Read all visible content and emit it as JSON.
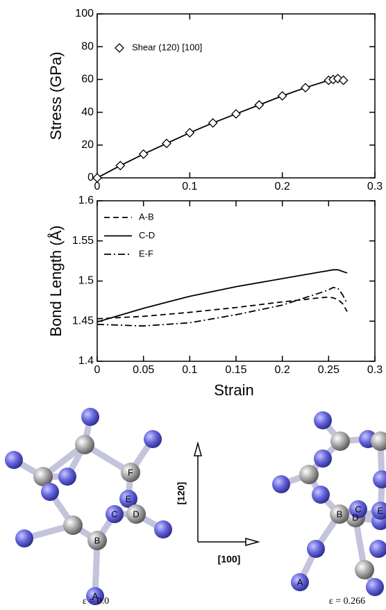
{
  "chart_data": [
    {
      "type": "line",
      "ylabel": "Stress (GPa)",
      "marker": "diamond",
      "x": [
        0,
        0.025,
        0.05,
        0.075,
        0.1,
        0.125,
        0.15,
        0.175,
        0.2,
        0.225,
        0.25,
        0.255,
        0.26,
        0.266
      ],
      "series": [
        {
          "name": "Shear (120) [100]",
          "color": "#000000",
          "style": "solid",
          "values": [
            0,
            7.5,
            14.5,
            21,
            27.5,
            33.5,
            39,
            44.5,
            50,
            55,
            59.5,
            60,
            60.5,
            59.5
          ]
        }
      ],
      "xlim": [
        0,
        0.3
      ],
      "ylim": [
        0,
        100
      ],
      "xticks": [
        0,
        0.1,
        0.2,
        0.3
      ],
      "yticks": [
        0,
        20,
        40,
        60,
        80,
        100
      ]
    },
    {
      "type": "line",
      "xlabel": "Strain",
      "ylabel": "Bond Length (Å)",
      "x": [
        0,
        0.05,
        0.1,
        0.15,
        0.2,
        0.24,
        0.25,
        0.255,
        0.26,
        0.265,
        0.27
      ],
      "series": [
        {
          "name": "A-B",
          "color": "#000000",
          "style": "dashed",
          "values": [
            1.453,
            1.456,
            1.461,
            1.467,
            1.474,
            1.479,
            1.48,
            1.479,
            1.477,
            1.472,
            1.462
          ]
        },
        {
          "name": "C-D",
          "color": "#000000",
          "style": "solid",
          "values": [
            1.449,
            1.466,
            1.481,
            1.493,
            1.503,
            1.511,
            1.513,
            1.514,
            1.514,
            1.512,
            1.51
          ]
        },
        {
          "name": "E-F",
          "color": "#000000",
          "style": "dashdot",
          "values": [
            1.446,
            1.444,
            1.448,
            1.458,
            1.47,
            1.485,
            1.489,
            1.492,
            1.491,
            1.483,
            1.472
          ]
        }
      ],
      "xlim": [
        0,
        0.3
      ],
      "ylim": [
        1.4,
        1.6
      ],
      "xticks": [
        0,
        0.05,
        0.1,
        0.15,
        0.2,
        0.25,
        0.3
      ],
      "yticks": [
        1.4,
        1.45,
        1.5,
        1.55,
        1.6
      ]
    }
  ],
  "figure": {
    "direction_vertical": "[120]",
    "direction_horizontal": "[100]",
    "left_caption": "ε = 0.0",
    "right_caption": "ε = 0.266",
    "left_atoms": [
      "A",
      "B",
      "C",
      "D",
      "E",
      "F"
    ],
    "right_atoms": [
      "A",
      "B",
      "C",
      "D",
      "E"
    ]
  }
}
